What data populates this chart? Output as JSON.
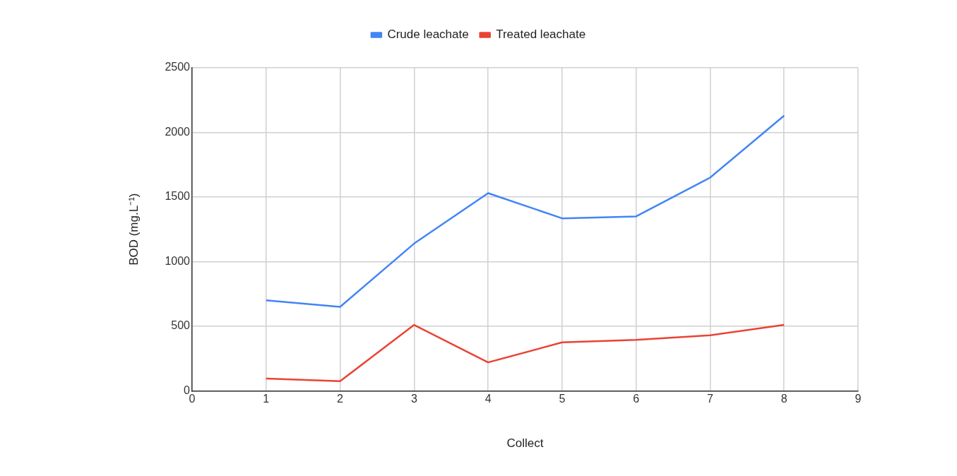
{
  "chart_data": {
    "type": "line",
    "xlabel": "Collect",
    "ylabel": "BOD (mg.L⁻¹)",
    "x": [
      1,
      2,
      3,
      4,
      5,
      6,
      7,
      8
    ],
    "series": [
      {
        "name": "Crude leachate",
        "color": "#4285f4",
        "values": [
          700,
          650,
          1140,
          1530,
          1335,
          1350,
          1650,
          2130
        ]
      },
      {
        "name": "Treated leachate",
        "color": "#ea4335",
        "values": [
          95,
          75,
          510,
          220,
          375,
          395,
          430,
          510
        ]
      }
    ],
    "xlim": [
      0,
      9
    ],
    "xticks": [
      0,
      1,
      2,
      3,
      4,
      5,
      6,
      7,
      8,
      9
    ],
    "ylim": [
      0,
      2500
    ],
    "yticks": [
      0,
      500,
      1000,
      1500,
      2000,
      2500
    ],
    "grid": true,
    "legend": "top"
  }
}
